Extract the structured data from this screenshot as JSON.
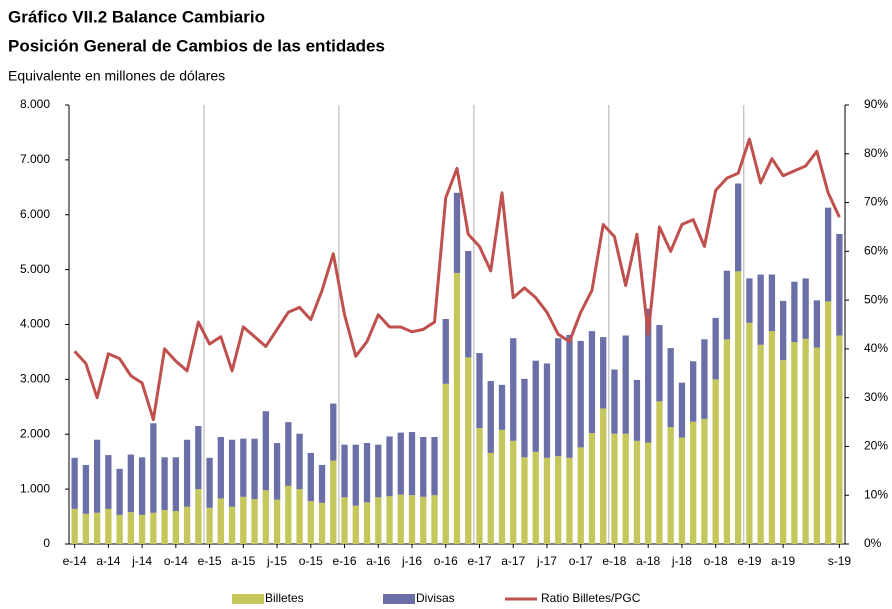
{
  "chart_data": {
    "type": "bar",
    "title": "Gráfico VII.2 Balance Cambiario",
    "subtitle": "Posición General de Cambios de las entidades",
    "y_label": "Equivalente en millones de dólares",
    "stacked": true,
    "categories": [
      "e-14",
      null,
      null,
      "a-14",
      null,
      null,
      "j-14",
      null,
      null,
      "o-14",
      null,
      null,
      "e-15",
      null,
      null,
      "a-15",
      null,
      null,
      "j-15",
      null,
      null,
      "o-15",
      null,
      null,
      "e-16",
      null,
      null,
      "a-16",
      null,
      null,
      "j-16",
      null,
      null,
      "o-16",
      null,
      null,
      "e-17",
      null,
      null,
      "a-17",
      null,
      null,
      "j-17",
      null,
      null,
      "o-17",
      null,
      null,
      "e-18",
      null,
      null,
      "a-18",
      null,
      null,
      "j-18",
      null,
      null,
      "o-18",
      null,
      null,
      "e-19",
      null,
      null,
      "a-19",
      null,
      null,
      null,
      null,
      "s-19"
    ],
    "series": [
      {
        "name": "Billetes",
        "color": "#c5c75c",
        "values": [
          640,
          550,
          570,
          640,
          530,
          580,
          530,
          570,
          620,
          600,
          680,
          1000,
          660,
          830,
          680,
          860,
          820,
          980,
          810,
          1060,
          1000,
          780,
          750,
          1520,
          850,
          700,
          760,
          850,
          870,
          900,
          890,
          860,
          890,
          2920,
          4940,
          3400,
          2110,
          1660,
          2080,
          1880,
          1580,
          1680,
          1570,
          1600,
          1570,
          1760,
          2020,
          2470,
          2010,
          2010,
          1880,
          1850,
          2600,
          2130,
          1940,
          2230,
          2280,
          3000,
          3730,
          4970,
          4030,
          3630,
          3880,
          3350,
          3680,
          3740,
          3580,
          4420,
          3800
        ]
      },
      {
        "name": "Divisas",
        "color": "#6a6fa7",
        "values": [
          930,
          890,
          1330,
          980,
          840,
          1050,
          1050,
          1630,
          960,
          980,
          1220,
          1150,
          910,
          1120,
          1220,
          1060,
          1100,
          1440,
          1030,
          1160,
          1010,
          880,
          690,
          1040,
          960,
          1110,
          1080,
          960,
          1090,
          1130,
          1150,
          1090,
          1060,
          1180,
          1460,
          1940,
          1370,
          1310,
          820,
          1870,
          1430,
          1660,
          1720,
          2150,
          2240,
          1940,
          1860,
          1300,
          1170,
          1790,
          1110,
          2440,
          1390,
          1440,
          1000,
          1100,
          1450,
          1120,
          1250,
          1600,
          810,
          1280,
          1030,
          1080,
          1100,
          1100,
          860,
          1710,
          1850
        ]
      },
      {
        "name": "Ratio Billetes/PGC",
        "color": "#c0504d",
        "type": "line",
        "axis": "y2",
        "values": [
          39.5,
          37,
          30,
          39,
          38,
          34.5,
          33,
          25.5,
          40,
          37.5,
          35.5,
          45.5,
          41,
          42.5,
          35.5,
          44.5,
          42.5,
          40.5,
          44,
          47.5,
          48.5,
          46,
          52,
          59.5,
          47,
          38.5,
          41.5,
          47,
          44.5,
          44.5,
          43.5,
          44,
          45.5,
          71,
          77,
          63.5,
          61,
          56,
          72,
          50.5,
          52.5,
          50.5,
          47.5,
          43,
          41.5,
          47.5,
          52,
          65.5,
          63,
          53,
          63.5,
          43,
          65,
          60,
          65.5,
          66.5,
          61,
          72.5,
          75,
          76,
          83,
          74,
          79,
          75.5,
          76.5,
          77.5,
          80.5,
          72,
          67
        ]
      }
    ],
    "ylim": [
      0,
      8000
    ],
    "yticks": [
      0,
      {
        "value": 1000,
        "label": "1.000"
      },
      {
        "value": 2000,
        "label": "2.000"
      },
      {
        "value": 3000,
        "label": "3.000"
      },
      {
        "value": 4000,
        "label": "4.000"
      },
      {
        "value": 5000,
        "label": "5.000"
      },
      {
        "value": 6000,
        "label": "6.000"
      },
      {
        "value": 7000,
        "label": "7.000"
      },
      {
        "value": 8000,
        "label": "8.000"
      }
    ],
    "y2lim": [
      0,
      90
    ],
    "y2ticks": [
      {
        "value": 0,
        "label": "0%"
      },
      {
        "value": 10,
        "label": "10%"
      },
      {
        "value": 20,
        "label": "20%"
      },
      {
        "value": 30,
        "label": "30%"
      },
      {
        "value": 40,
        "label": "40%"
      },
      {
        "value": 50,
        "label": "50%"
      },
      {
        "value": 60,
        "label": "60%"
      },
      {
        "value": 70,
        "label": "70%"
      },
      {
        "value": 80,
        "label": "80%"
      },
      {
        "value": 90,
        "label": "90%"
      }
    ],
    "legend": "bottom"
  }
}
